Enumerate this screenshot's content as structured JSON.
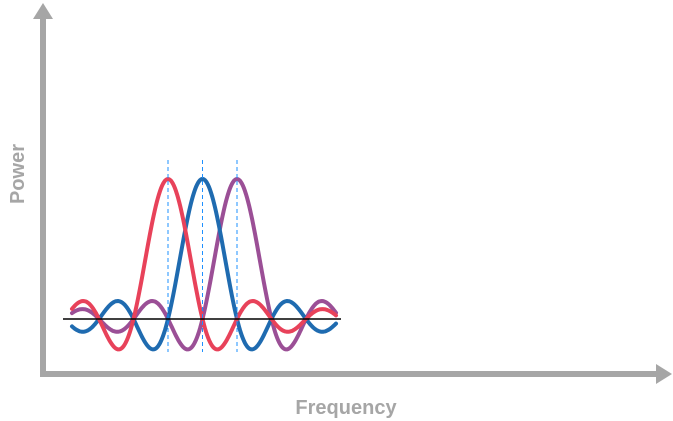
{
  "axes": {
    "x_label": "Frequency",
    "y_label": "Power",
    "axis_color": "#a6a6a6"
  },
  "diagram": {
    "subcarriers": [
      {
        "color": "#e8425a"
      },
      {
        "color": "#1f6bb0"
      },
      {
        "color": "#9b4f96"
      }
    ],
    "baseline_color": "#000000",
    "marker_line_color": "#1e90ff"
  }
}
